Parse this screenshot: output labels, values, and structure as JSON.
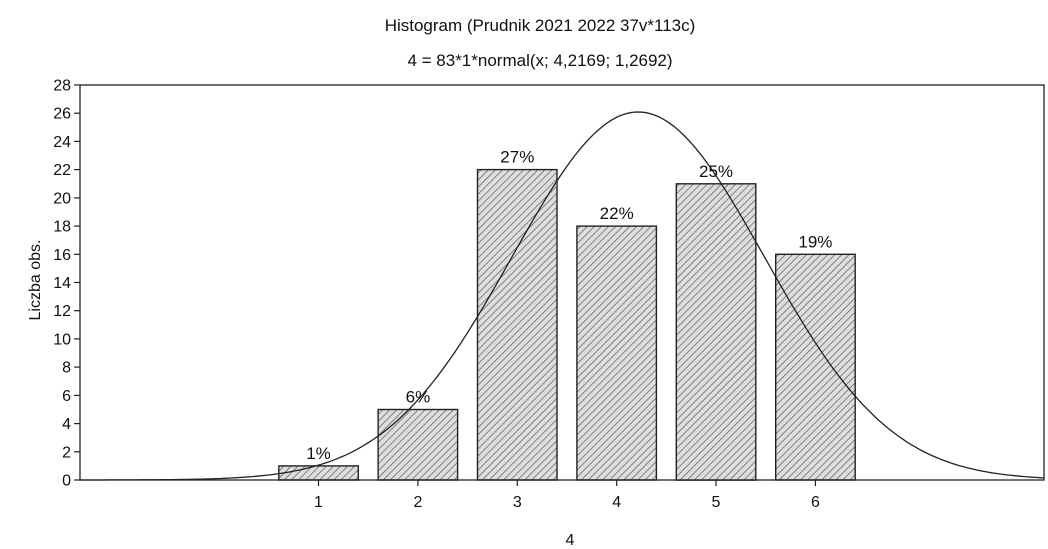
{
  "chart_data": {
    "type": "bar",
    "title": "Histogram (Prudnik 2021 2022 37v*113c)",
    "subtitle": "4 = 83*1*normal(x; 4,2169; 1,2692)",
    "xlabel": "4",
    "ylabel": "Liczba obs.",
    "categories": [
      "1",
      "2",
      "3",
      "4",
      "5",
      "6"
    ],
    "x": [
      1,
      2,
      3,
      4,
      5,
      6
    ],
    "values": [
      1,
      5,
      22,
      18,
      21,
      16
    ],
    "data_labels": [
      "1%",
      "6%",
      "27%",
      "22%",
      "25%",
      "19%"
    ],
    "ylim": [
      0,
      28
    ],
    "yticks": [
      0,
      2,
      4,
      6,
      8,
      10,
      12,
      14,
      16,
      18,
      20,
      22,
      24,
      26,
      28
    ],
    "xlim": [
      -1.4,
      8.3
    ],
    "grid": false,
    "bar_pattern": "diagonal-hatch",
    "fit_curve": {
      "type": "normal",
      "n": 83,
      "bin_width": 1,
      "mean": 4.2169,
      "sd": 1.2692
    },
    "colors": {
      "bar_fill": "#dcdcdc",
      "hatch": "#555555",
      "outline": "#222222",
      "curve": "#222222"
    }
  }
}
